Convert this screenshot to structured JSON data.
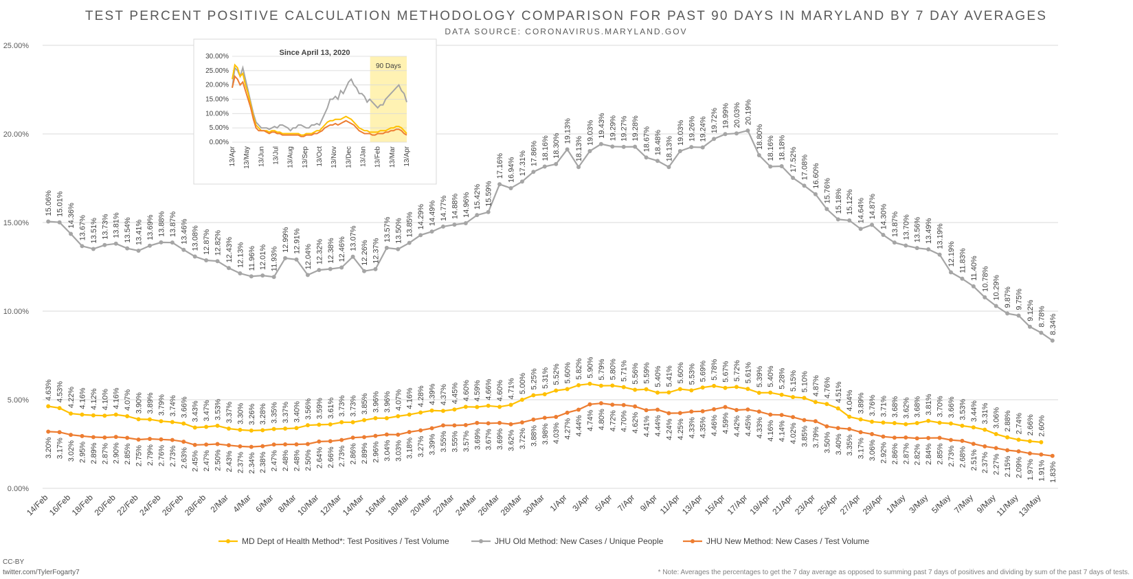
{
  "title": "TEST PERCENT POSITIVE CALCULATION METHODOLOGY COMPARISON FOR PAST 90 DAYS IN MARYLAND BY 7 DAY AVERAGES",
  "subtitle": "DATA SOURCE: CORONAVIRUS.MARYLAND.GOV",
  "credit": [
    "CC-BY",
    "twitter.com/TylerFogarty7"
  ],
  "note": "* Note: Averages the percentages to get the 7 day average as opposed to summing past 7 days of positives and dividing by sum of the past 7 days of tests.",
  "colors": {
    "md": "#FFC000",
    "old": "#A5A5A5",
    "new": "#ED7D31",
    "grid": "#D9D9D9",
    "highlight": "#FFF2B3"
  },
  "chart_data": [
    {
      "type": "line",
      "title": "TEST PERCENT POSITIVE CALCULATION METHODOLOGY COMPARISON FOR PAST 90 DAYS IN MARYLAND BY 7 DAY AVERAGES",
      "subtitle": "DATA SOURCE: CORONAVIRUS.MARYLAND.GOV",
      "ylim": [
        0,
        25
      ],
      "yticks": [
        "0.00%",
        "5.00%",
        "10.00%",
        "15.00%",
        "20.00%",
        "25.00%"
      ],
      "grid": true,
      "legend": "bottom",
      "x_tick_labels": [
        "14/Feb",
        "16/Feb",
        "18/Feb",
        "20/Feb",
        "22/Feb",
        "24/Feb",
        "26/Feb",
        "28/Feb",
        "2/Mar",
        "4/Mar",
        "6/Mar",
        "8/Mar",
        "10/Mar",
        "12/Mar",
        "14/Mar",
        "16/Mar",
        "18/Mar",
        "20/Mar",
        "22/Mar",
        "24/Mar",
        "26/Mar",
        "28/Mar",
        "30/Mar",
        "1/Apr",
        "3/Apr",
        "5/Apr",
        "7/Apr",
        "9/Apr",
        "11/Apr",
        "13/Apr",
        "15/Apr",
        "17/Apr",
        "19/Apr",
        "21/Apr",
        "23/Apr",
        "25/Apr",
        "27/Apr",
        "29/Apr",
        "1/May",
        "3/May",
        "5/May",
        "7/May",
        "9/May",
        "11/May",
        "13/May"
      ],
      "series": [
        {
          "name": "JHU Old Method: New Cases / Unique People",
          "values": [
            15.06,
            15.01,
            14.36,
            13.67,
            13.51,
            13.73,
            13.81,
            13.54,
            13.41,
            13.69,
            13.88,
            13.87,
            13.46,
            13.08,
            12.87,
            12.82,
            12.43,
            12.13,
            11.96,
            12.01,
            11.93,
            12.99,
            12.91,
            12.04,
            12.32,
            12.38,
            12.46,
            13.07,
            12.26,
            12.37,
            13.57,
            13.5,
            13.85,
            14.29,
            14.49,
            14.77,
            14.88,
            14.96,
            15.42,
            15.59,
            17.16,
            16.94,
            17.31,
            17.86,
            18.16,
            18.3,
            19.13,
            18.13,
            19.03,
            19.43,
            19.29,
            19.27,
            19.28,
            18.67,
            18.48,
            18.13,
            19.03,
            19.26,
            19.24,
            19.72,
            19.99,
            20.03,
            20.19,
            18.8,
            18.16,
            18.18,
            17.52,
            17.08,
            16.6,
            15.76,
            15.18,
            15.12,
            14.64,
            14.87,
            14.3,
            13.87,
            13.7,
            13.56,
            13.49,
            13.19,
            12.19,
            11.83,
            11.4,
            10.78,
            10.29,
            9.87,
            9.75,
            9.12,
            8.78,
            8.34
          ]
        },
        {
          "name": "MD Dept of Health Method*: Test Positives / Test Volume",
          "values": [
            4.63,
            4.53,
            4.22,
            4.16,
            4.12,
            4.1,
            4.16,
            4.07,
            3.9,
            3.89,
            3.79,
            3.74,
            3.66,
            3.43,
            3.47,
            3.53,
            3.37,
            3.3,
            3.26,
            3.28,
            3.35,
            3.37,
            3.4,
            3.56,
            3.59,
            3.61,
            3.73,
            3.73,
            3.85,
            3.96,
            3.96,
            4.07,
            4.16,
            4.28,
            4.39,
            4.37,
            4.45,
            4.6,
            4.59,
            4.66,
            4.6,
            4.71,
            5.0,
            5.25,
            5.31,
            5.52,
            5.6,
            5.82,
            5.9,
            5.79,
            5.8,
            5.71,
            5.56,
            5.59,
            5.4,
            5.41,
            5.6,
            5.53,
            5.69,
            5.78,
            5.67,
            5.72,
            5.61,
            5.39,
            5.4,
            5.28,
            5.15,
            5.1,
            4.87,
            4.76,
            4.51,
            4.04,
            3.89,
            3.76,
            3.71,
            3.68,
            3.62,
            3.68,
            3.81,
            3.7,
            3.66,
            3.53,
            3.44,
            3.31,
            3.06,
            2.88,
            2.74,
            2.66,
            2.6
          ]
        },
        {
          "name": "JHU New Method: New Cases / Test Volume",
          "values": [
            3.2,
            3.17,
            3.02,
            2.95,
            2.89,
            2.87,
            2.9,
            2.85,
            2.75,
            2.79,
            2.76,
            2.73,
            2.63,
            2.45,
            2.47,
            2.5,
            2.43,
            2.37,
            2.34,
            2.38,
            2.47,
            2.48,
            2.48,
            2.5,
            2.64,
            2.66,
            2.73,
            2.86,
            2.89,
            2.96,
            3.04,
            3.03,
            3.18,
            3.27,
            3.39,
            3.55,
            3.55,
            3.57,
            3.69,
            3.67,
            3.69,
            3.62,
            3.72,
            3.88,
            3.98,
            4.03,
            4.27,
            4.44,
            4.74,
            4.8,
            4.72,
            4.7,
            4.62,
            4.41,
            4.44,
            4.24,
            4.25,
            4.33,
            4.35,
            4.46,
            4.59,
            4.42,
            4.45,
            4.33,
            4.16,
            4.14,
            4.02,
            3.85,
            3.79,
            3.5,
            3.4,
            3.35,
            3.17,
            3.06,
            2.92,
            2.86,
            2.87,
            2.82,
            2.84,
            2.85,
            2.73,
            2.68,
            2.51,
            2.37,
            2.27,
            2.15,
            2.09,
            1.97,
            1.91,
            1.83
          ]
        }
      ]
    },
    {
      "type": "line",
      "title": "Since April 13, 2020",
      "ylim": [
        0,
        30
      ],
      "yticks": [
        "0.00%",
        "5.00%",
        "10.00%",
        "15.00%",
        "20.00%",
        "25.00%",
        "30.00%"
      ],
      "x_tick_labels": [
        "13/Apr",
        "13/May",
        "13/Jun",
        "13/Jul",
        "13/Aug",
        "13/Sep",
        "13/Oct",
        "13/Nov",
        "13/Dec",
        "13/Jan",
        "13/Feb",
        "13/Mar",
        "13/Apr"
      ],
      "highlight_label": "90 Days",
      "series": [
        {
          "name": "JHU Old Method: New Cases / Unique People",
          "values": [
            19,
            26,
            25,
            23,
            26,
            22,
            18,
            14,
            10,
            7,
            6,
            5,
            5,
            5,
            4.5,
            5,
            5.5,
            5,
            6,
            6,
            5.5,
            5,
            4,
            5,
            5,
            6,
            6,
            5.5,
            5,
            5,
            6,
            6,
            6.5,
            6,
            8,
            10,
            12,
            15,
            15,
            16,
            15,
            18,
            17,
            19,
            21,
            22,
            20,
            19,
            17,
            17,
            16,
            14,
            15,
            14,
            13,
            12,
            13,
            13,
            15,
            16,
            17,
            18,
            19,
            20,
            18,
            17,
            14
          ]
        },
        {
          "name": "MD Dept of Health Method*: Test Positives / Test Volume",
          "values": [
            22,
            27,
            26,
            23,
            24,
            20,
            17,
            13,
            9,
            6,
            5,
            4,
            4,
            4,
            3.5,
            4,
            4,
            3.5,
            3.5,
            3,
            3,
            3,
            3,
            3,
            3,
            3,
            2.5,
            2.5,
            3,
            3,
            3,
            3.5,
            4,
            4,
            5,
            6,
            7,
            7.5,
            7.5,
            8,
            8,
            8,
            8.5,
            9,
            8.5,
            8,
            7,
            6,
            5,
            4.5,
            4,
            4,
            3.5,
            3.5,
            3.5,
            3.5,
            4,
            4,
            4,
            4.5,
            5,
            5,
            5.5,
            5.5,
            5,
            4,
            3
          ]
        },
        {
          "name": "JHU New Method: New Cases / Test Volume",
          "values": [
            19,
            23,
            22,
            20,
            21,
            18,
            15,
            12,
            8,
            5,
            4,
            4,
            4,
            3.5,
            3,
            3.5,
            3.5,
            3,
            3,
            2.5,
            2.5,
            2.5,
            2.5,
            2.5,
            2.5,
            2.5,
            2,
            2,
            2.5,
            2.5,
            2.5,
            3,
            3,
            3.5,
            4,
            5,
            5.5,
            6,
            6,
            6.5,
            6,
            6.5,
            7,
            7.5,
            7,
            6.5,
            6,
            5,
            4,
            3.5,
            3,
            3,
            3,
            2.5,
            2.5,
            3,
            3,
            3,
            3.5,
            3.5,
            4,
            4,
            4.5,
            4.5,
            4,
            3,
            2.5
          ]
        }
      ]
    }
  ]
}
